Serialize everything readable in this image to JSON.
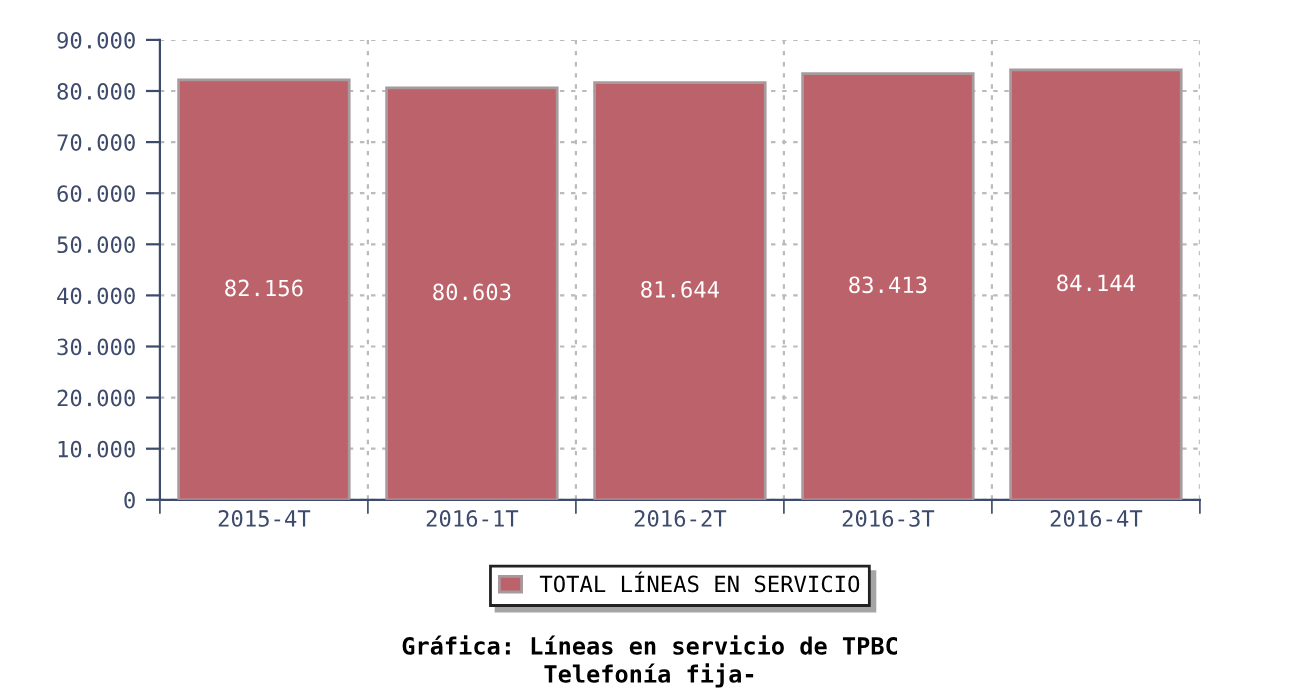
{
  "chart_data": {
    "type": "bar",
    "title": "Gráfica: Líneas en servicio de TPBC",
    "subtitle": "Telefonía fija-",
    "categories": [
      "2015-4T",
      "2016-1T",
      "2016-2T",
      "2016-3T",
      "2016-4T"
    ],
    "series": [
      {
        "name": "TOTAL LÍNEAS EN SERVICIO",
        "color": "#bc626b",
        "values": [
          82156,
          80603,
          81644,
          83413,
          84144
        ],
        "value_labels": [
          "82.156",
          "80.603",
          "81.644",
          "83.413",
          "84.144"
        ]
      }
    ],
    "ylim": [
      0,
      90000
    ],
    "yticks": [
      {
        "value": 0,
        "label": "0"
      },
      {
        "value": 10000,
        "label": "10.000"
      },
      {
        "value": 20000,
        "label": "20.000"
      },
      {
        "value": 30000,
        "label": "30.000"
      },
      {
        "value": 40000,
        "label": "40.000"
      },
      {
        "value": 50000,
        "label": "50.000"
      },
      {
        "value": 60000,
        "label": "60.000"
      },
      {
        "value": 70000,
        "label": "70.000"
      },
      {
        "value": 80000,
        "label": "80.000"
      },
      {
        "value": 90000,
        "label": "90.000"
      }
    ],
    "grid": true,
    "legend": "bottom"
  }
}
